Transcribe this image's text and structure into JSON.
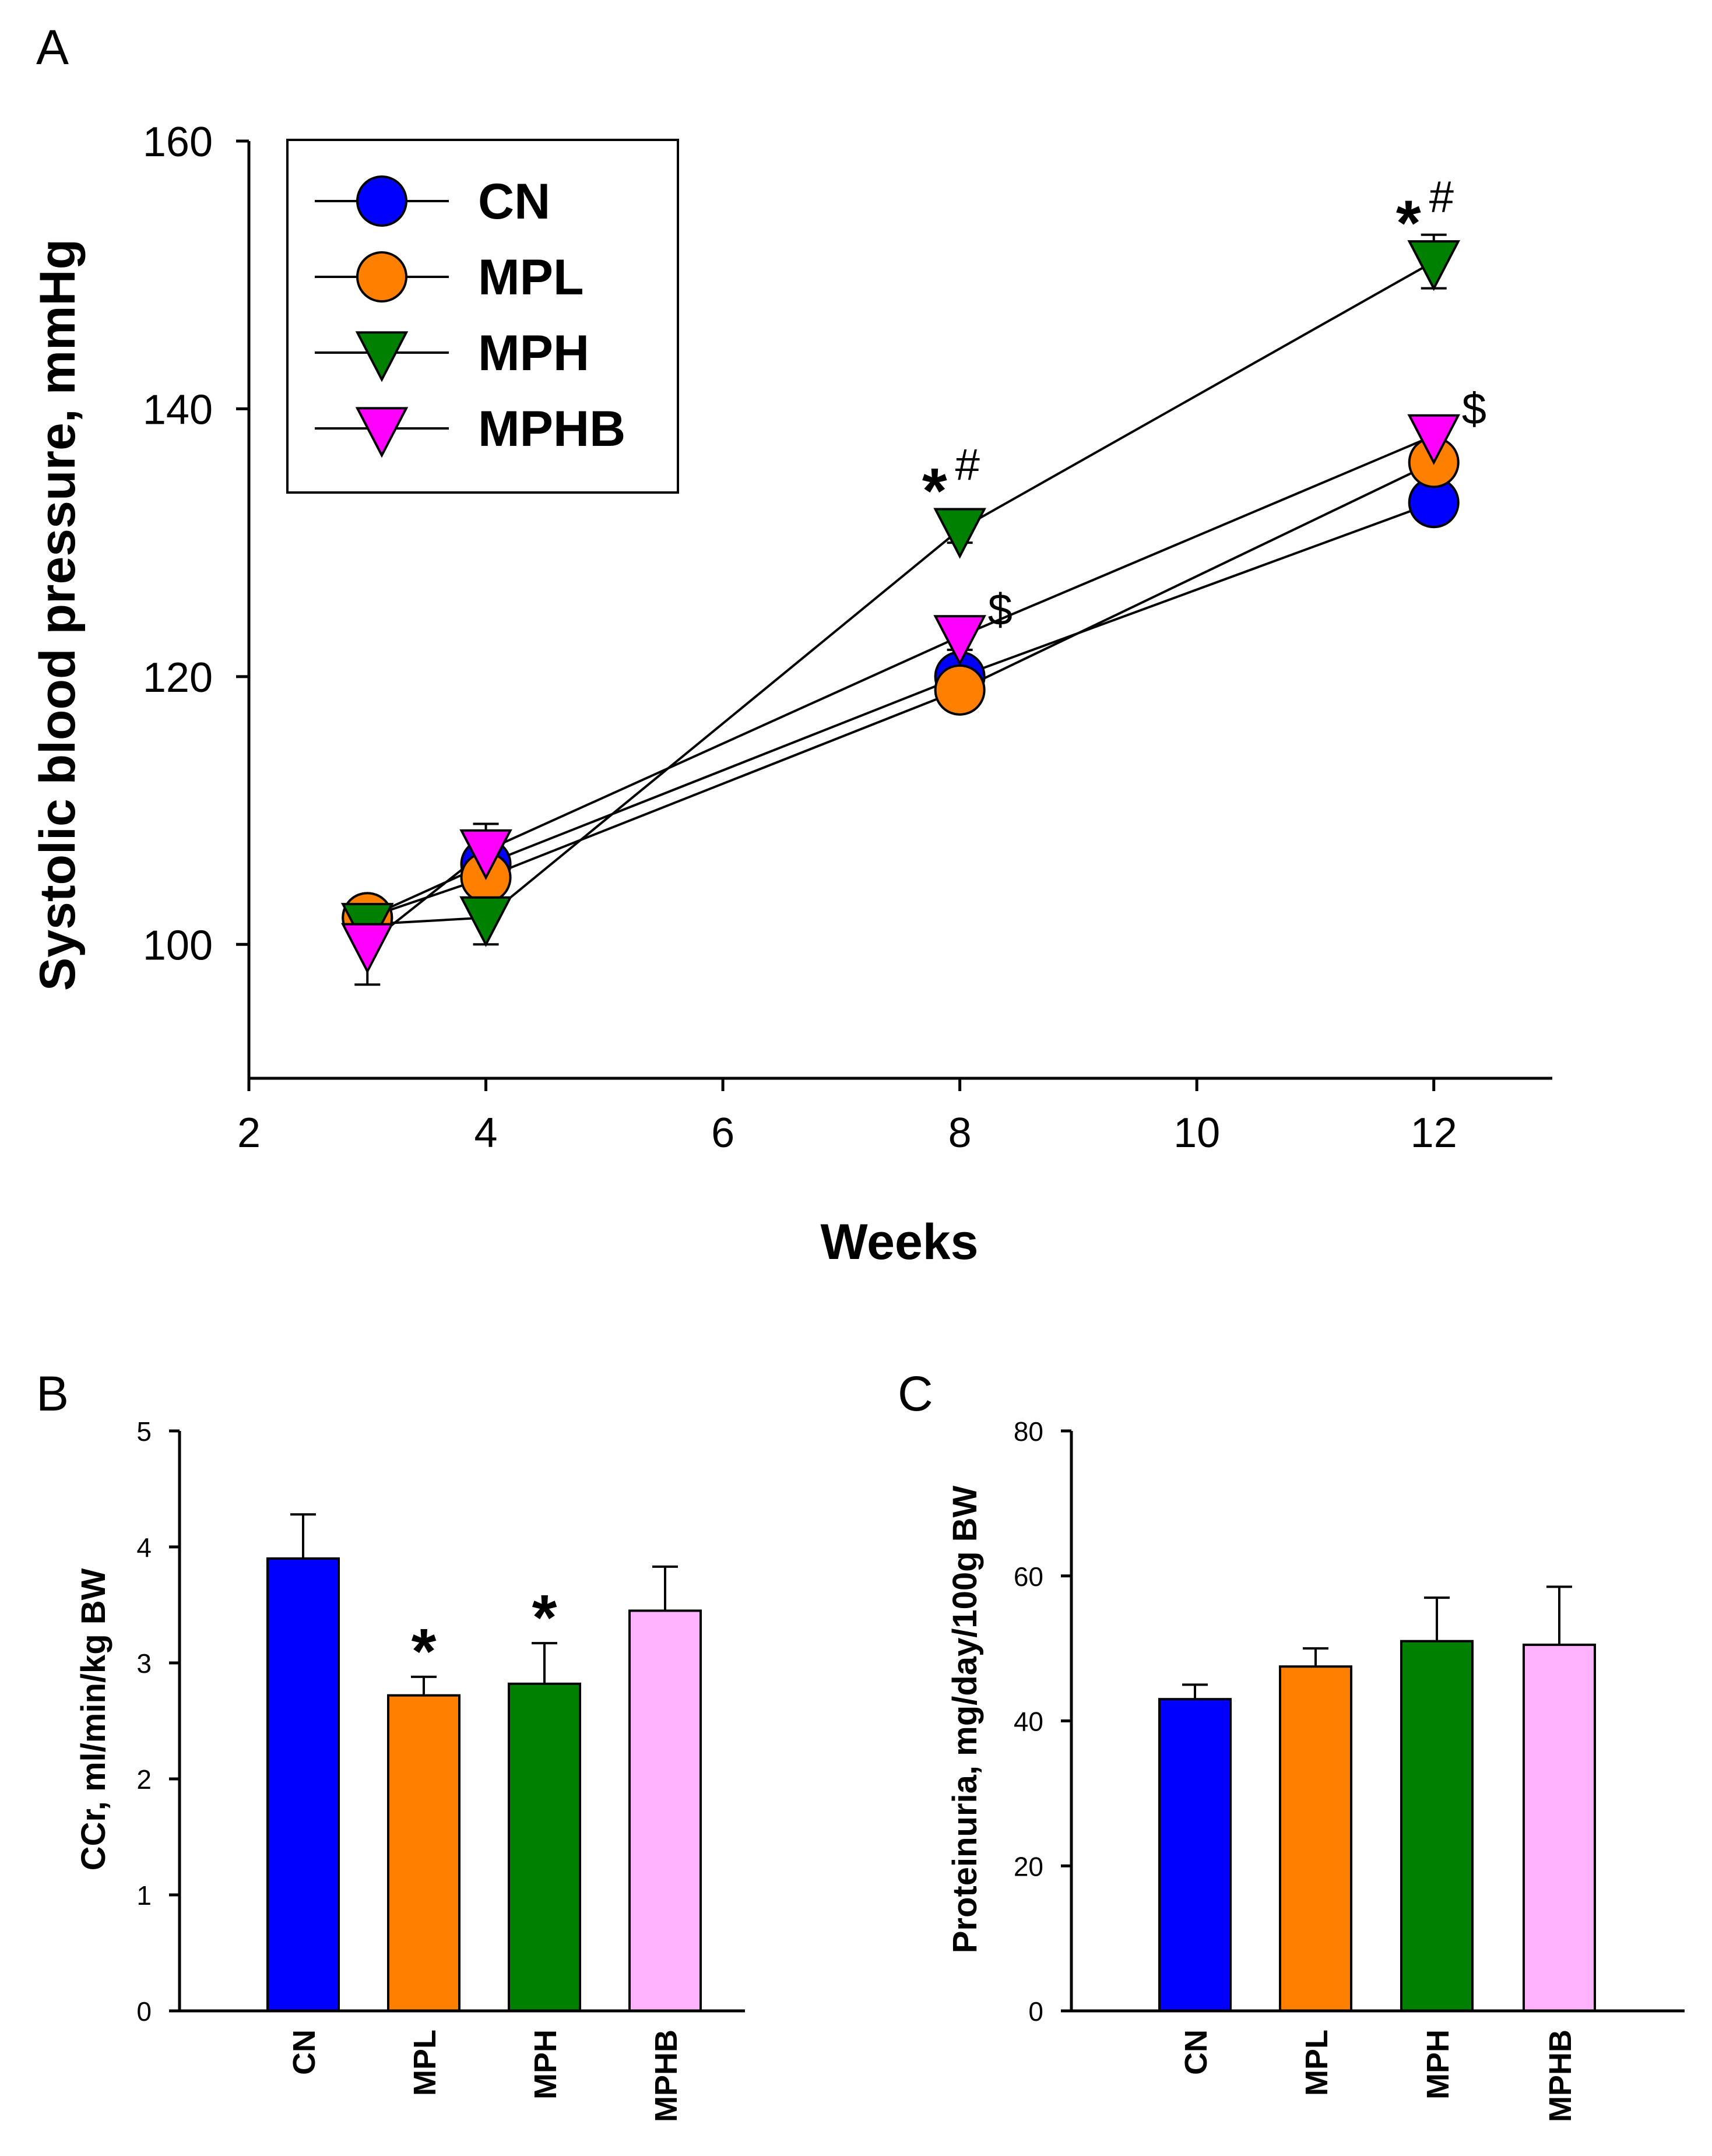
{
  "chart_data": [
    {
      "panel": "A",
      "type": "line",
      "xlabel": "Weeks",
      "ylabel": "Systolic blood pressure, mmHg",
      "xlim": [
        2,
        13
      ],
      "ylim": [
        90,
        160
      ],
      "xticks": [
        2,
        4,
        6,
        8,
        10,
        12
      ],
      "yticks": [
        100,
        120,
        140,
        160
      ],
      "x": [
        3,
        4,
        8,
        12
      ],
      "legend": "top-left",
      "series": [
        {
          "name": "CN",
          "marker": "circle",
          "color": "#0000ff",
          "values": [
            102,
            106,
            120,
            133
          ],
          "errors": [
            1,
            2,
            1,
            1
          ]
        },
        {
          "name": "MPL",
          "marker": "circle",
          "color": "#ff8000",
          "values": [
            102,
            105,
            119,
            136
          ],
          "errors": [
            1,
            2,
            1,
            1
          ]
        },
        {
          "name": "MPH",
          "marker": "triangle-down",
          "color": "#008000",
          "values": [
            101.5,
            102,
            131,
            151
          ],
          "errors": [
            1,
            2,
            1,
            2
          ]
        },
        {
          "name": "MPHB",
          "marker": "triangle-down",
          "color": "#ff00ff",
          "values": [
            100,
            107,
            123,
            138
          ],
          "errors": [
            3,
            2,
            1,
            1
          ]
        }
      ],
      "annotations": [
        {
          "x": 8,
          "y": 131,
          "star": "*",
          "symbol": "#"
        },
        {
          "x": 12,
          "y": 151,
          "star": "*",
          "symbol": "#"
        },
        {
          "x": 8,
          "y": 123,
          "star": "",
          "symbol": "$"
        },
        {
          "x": 12,
          "y": 138,
          "star": "",
          "symbol": "$"
        }
      ]
    },
    {
      "panel": "B",
      "type": "bar",
      "ylabel": "CCr, ml/min/kg BW",
      "ylim": [
        0,
        5
      ],
      "yticks": [
        0,
        1,
        2,
        3,
        4,
        5
      ],
      "categories": [
        "CN",
        "MPL",
        "MPH",
        "MPHB"
      ],
      "colors": [
        "#0000ff",
        "#ff8000",
        "#008000",
        "#ffb3ff"
      ],
      "values": [
        3.9,
        2.72,
        2.82,
        3.45
      ],
      "errors": [
        0.38,
        0.16,
        0.35,
        0.38
      ],
      "significance": [
        "",
        "*",
        "*",
        ""
      ]
    },
    {
      "panel": "C",
      "type": "bar",
      "ylabel": "Proteinuria, mg/day/100g BW",
      "ylim": [
        0,
        80
      ],
      "yticks": [
        0,
        20,
        40,
        60,
        80
      ],
      "categories": [
        "CN",
        "MPL",
        "MPH",
        "MPHB"
      ],
      "colors": [
        "#0000ff",
        "#ff8000",
        "#008000",
        "#ffb3ff"
      ],
      "values": [
        43,
        47.5,
        51,
        50.5
      ],
      "errors": [
        2,
        2.5,
        6,
        8
      ],
      "significance": [
        "",
        "",
        "",
        ""
      ]
    }
  ]
}
